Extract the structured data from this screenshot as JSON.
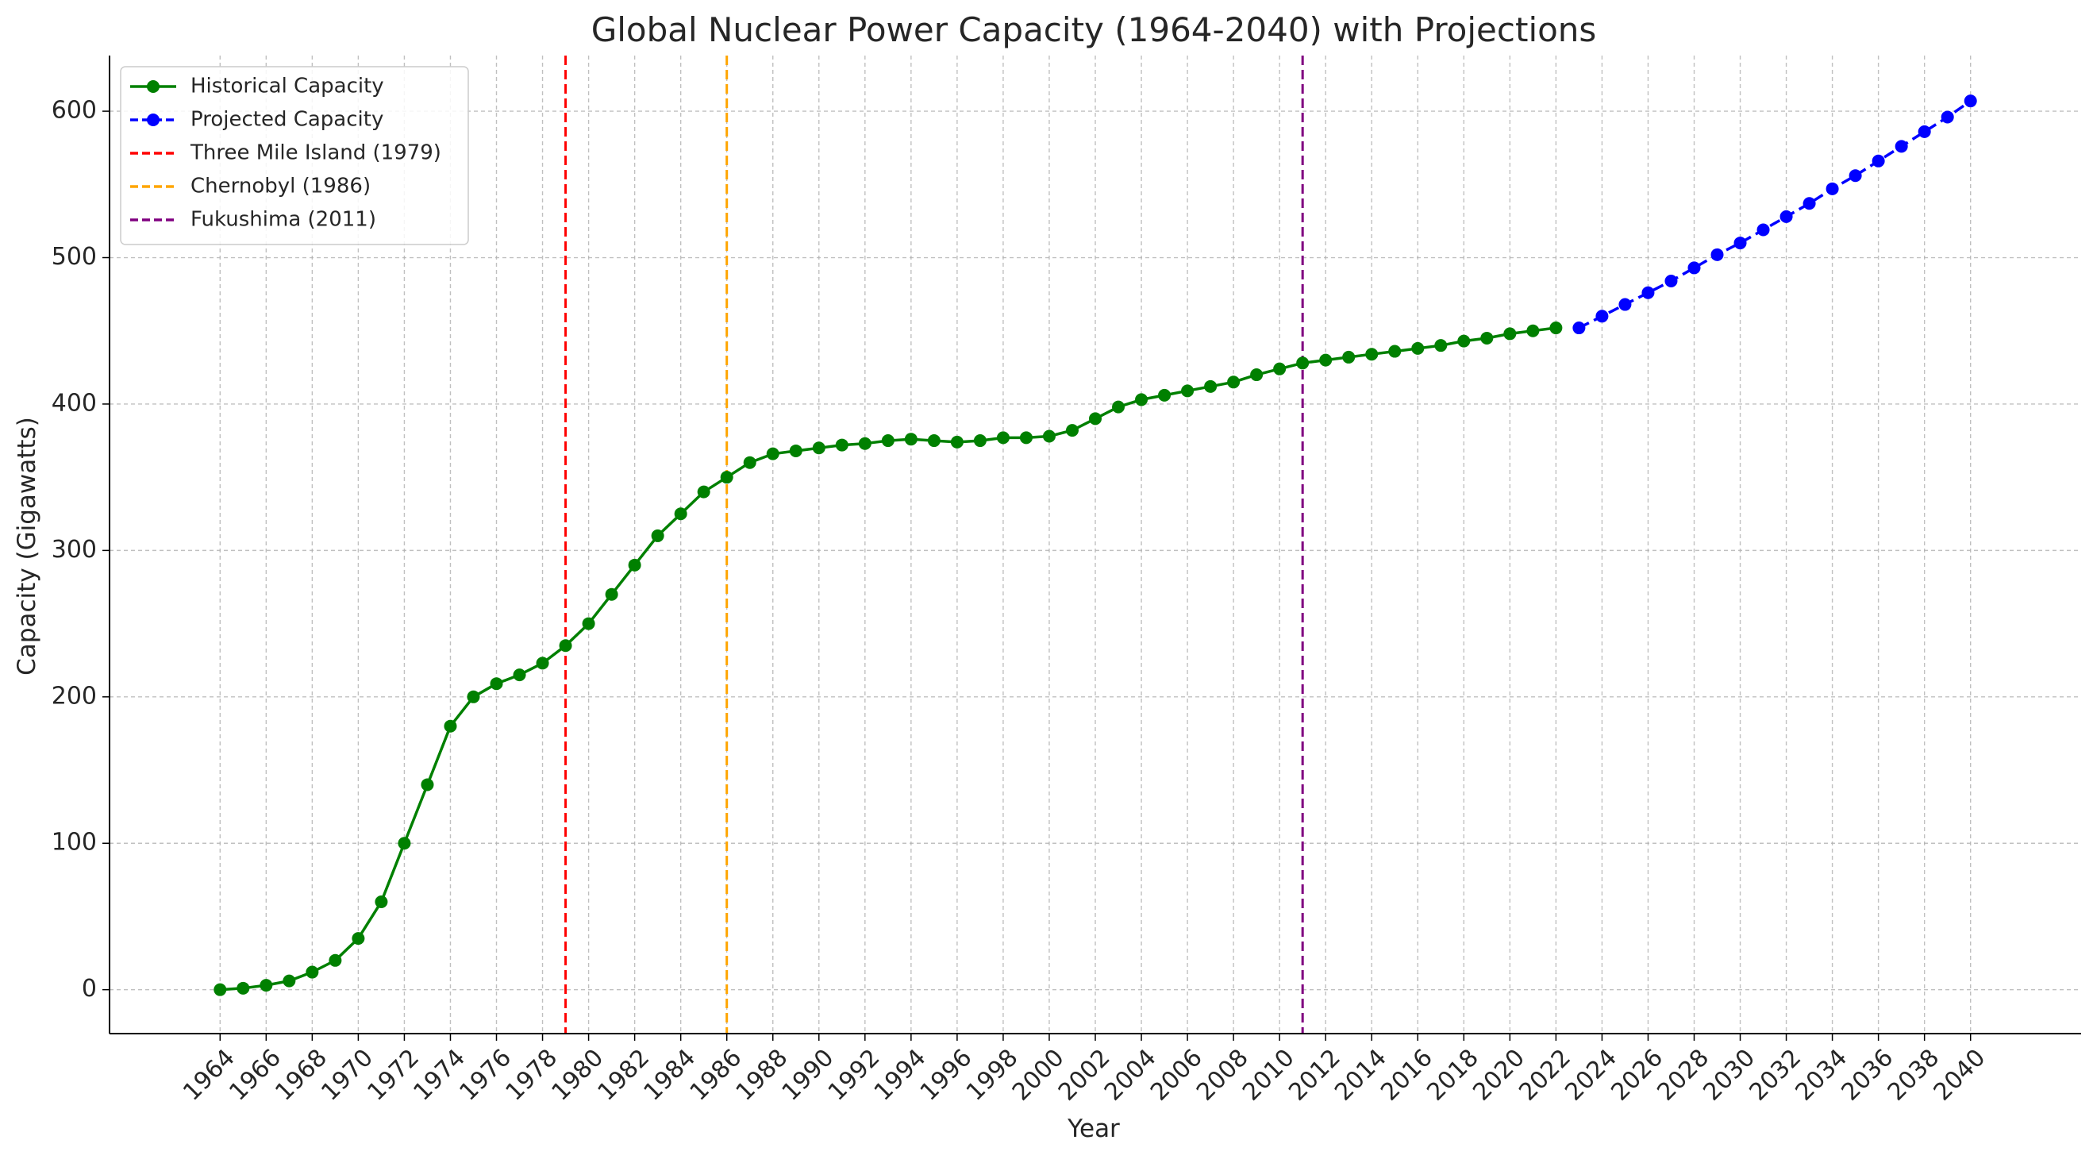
{
  "chart_data": {
    "type": "line",
    "title": "Global Nuclear Power Capacity (1964-2040) with Projections",
    "xlabel": "Year",
    "ylabel": "Capacity (Gigawatts)",
    "xlim": [
      1959.2,
      2044.8
    ],
    "ylim": [
      -30,
      638
    ],
    "grid": true,
    "legend_position": "top-left",
    "x_ticks": [
      "1964",
      "1966",
      "1968",
      "1970",
      "1972",
      "1974",
      "1976",
      "1978",
      "1980",
      "1982",
      "1984",
      "1986",
      "1988",
      "1990",
      "1992",
      "1994",
      "1996",
      "1998",
      "2000",
      "2002",
      "2004",
      "2006",
      "2008",
      "2010",
      "2012",
      "2014",
      "2016",
      "2018",
      "2020",
      "2022",
      "2024",
      "2026",
      "2028",
      "2030",
      "2032",
      "2034",
      "2036",
      "2038",
      "2040"
    ],
    "y_ticks": [
      "0",
      "100",
      "200",
      "300",
      "400",
      "500",
      "600"
    ],
    "series": [
      {
        "name": "Historical Capacity",
        "color": "#008000",
        "line_style": "solid",
        "marker": "circle",
        "x": [
          1964,
          1965,
          1966,
          1967,
          1968,
          1969,
          1970,
          1971,
          1972,
          1973,
          1974,
          1975,
          1976,
          1977,
          1978,
          1979,
          1980,
          1981,
          1982,
          1983,
          1984,
          1985,
          1986,
          1987,
          1988,
          1989,
          1990,
          1991,
          1992,
          1993,
          1994,
          1995,
          1996,
          1997,
          1998,
          1999,
          2000,
          2001,
          2002,
          2003,
          2004,
          2005,
          2006,
          2007,
          2008,
          2009,
          2010,
          2011,
          2012,
          2013,
          2014,
          2015,
          2016,
          2017,
          2018,
          2019,
          2020,
          2021,
          2022
        ],
        "values": [
          0,
          1,
          3,
          6,
          12,
          20,
          35,
          60,
          100,
          140,
          180,
          200,
          209,
          215,
          223,
          235,
          250,
          270,
          290,
          310,
          325,
          340,
          350,
          360,
          366,
          368,
          370,
          372,
          373,
          375,
          376,
          375,
          374,
          375,
          377,
          377,
          378,
          382,
          390,
          398,
          403,
          406,
          409,
          412,
          415,
          420,
          424,
          428,
          430,
          432,
          434,
          436,
          438,
          440,
          443,
          445,
          448,
          450,
          452
        ]
      },
      {
        "name": "Projected Capacity",
        "color": "#0000ff",
        "line_style": "dashed",
        "marker": "circle",
        "x": [
          2023,
          2024,
          2025,
          2026,
          2027,
          2028,
          2029,
          2030,
          2031,
          2032,
          2033,
          2034,
          2035,
          2036,
          2037,
          2038,
          2039,
          2040
        ],
        "values": [
          452,
          460,
          468,
          476,
          484,
          493,
          502,
          510,
          519,
          528,
          537,
          547,
          556,
          566,
          576,
          586,
          596,
          607
        ]
      }
    ],
    "events": [
      {
        "name": "Three Mile Island (1979)",
        "year": 1979,
        "color": "#ff0000"
      },
      {
        "name": "Chernobyl (1986)",
        "year": 1986,
        "color": "#ffa500"
      },
      {
        "name": "Fukushima (2011)",
        "year": 2011,
        "color": "#800080"
      }
    ]
  }
}
